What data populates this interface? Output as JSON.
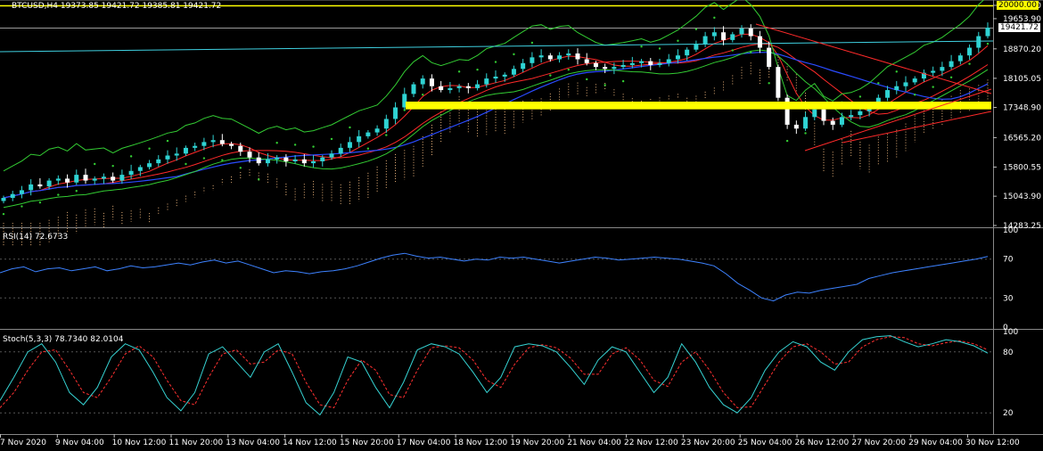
{
  "header": {
    "symbol_line": "BTCUSD,H4  19373.85 19421.72 19385.81 19421.72"
  },
  "price_tags": {
    "level_tag": "20000.00",
    "bid_tag": "19421.72"
  },
  "rsi": {
    "title": "RSI(14) 72.6733"
  },
  "stoch": {
    "title": "Stoch(5,3,3) 78.7340 82.0104"
  },
  "colors": {
    "background": "#000000",
    "bull_candle": "#2fd3d3",
    "bear_candle": "#ffffff",
    "ma_fast": "#ff2a2a",
    "ma_slow": "#2a4bff",
    "band_lime": "#33cc33",
    "kumo": "#e8b27a",
    "highlight": "#ffff00",
    "rsi_line": "#3d82ff",
    "stoch_main": "#36d3d3",
    "stoch_signal": "#ff3030"
  },
  "chart_data": [
    {
      "type": "candlestick",
      "title": "BTCUSD,H4",
      "ylim": [
        14283.25,
        20000.0
      ],
      "y_ticks": [
        "20000.00",
        "19653.90",
        "18870.20",
        "18105.05",
        "17348.90",
        "16565.20",
        "15800.55",
        "15043.90",
        "14283.25"
      ],
      "y_tick_values": [
        20000.0,
        19653.9,
        18870.2,
        18105.05,
        17348.9,
        16565.2,
        15800.55,
        15043.9,
        14283.25
      ],
      "x_ticks": [
        "7 Nov 2020",
        "9 Nov 04:00",
        "10 Nov 12:00",
        "11 Nov 20:00",
        "13 Nov 04:00",
        "14 Nov 12:00",
        "15 Nov 20:00",
        "17 Nov 04:00",
        "18 Nov 12:00",
        "19 Nov 20:00",
        "21 Nov 04:00",
        "22 Nov 12:00",
        "23 Nov 20:00",
        "25 Nov 04:00",
        "26 Nov 12:00",
        "27 Nov 20:00",
        "29 Nov 04:00",
        "30 Nov 12:00"
      ],
      "last": {
        "open": 19373.85,
        "high": 19421.72,
        "low": 19385.81,
        "close": 19421.72
      },
      "highlight_zone": [
        17300,
        17500
      ],
      "close_series": [
        15000,
        15100,
        15200,
        15350,
        15300,
        15450,
        15500,
        15400,
        15600,
        15450,
        15500,
        15550,
        15450,
        15600,
        15700,
        15800,
        15900,
        16000,
        16100,
        16150,
        16300,
        16350,
        16450,
        16500,
        16400,
        16350,
        16200,
        16050,
        15900,
        16000,
        16050,
        15950,
        16000,
        15900,
        15950,
        16050,
        16150,
        16300,
        16450,
        16600,
        16700,
        16800,
        17050,
        17350,
        17700,
        17950,
        18100,
        17900,
        17800,
        17850,
        17900,
        17850,
        17950,
        18100,
        18150,
        18200,
        18350,
        18500,
        18650,
        18700,
        18600,
        18700,
        18750,
        18600,
        18500,
        18400,
        18350,
        18400,
        18450,
        18500,
        18550,
        18450,
        18500,
        18600,
        18700,
        18850,
        19000,
        19200,
        19300,
        19100,
        19250,
        19400,
        19200,
        18900,
        18400,
        17600,
        16900,
        16800,
        17100,
        17300,
        17000,
        16900,
        17100,
        17150,
        17250,
        17400,
        17600,
        17800,
        17900,
        18000,
        18100,
        18250,
        18300,
        18400,
        18550,
        18700,
        18900,
        19200,
        19421.72
      ]
    },
    {
      "type": "line",
      "title": "RSI(14) 72.6733",
      "ylim": [
        0,
        100
      ],
      "y_ticks": [
        "100",
        "70",
        "30",
        "0"
      ],
      "y_tick_values": [
        100,
        70,
        30,
        0
      ],
      "values": [
        56,
        60,
        62,
        57,
        60,
        61,
        58,
        60,
        62,
        58,
        60,
        63,
        61,
        62,
        64,
        66,
        64,
        67,
        69,
        66,
        68,
        64,
        60,
        56,
        58,
        57,
        55,
        57,
        58,
        60,
        63,
        67,
        71,
        74,
        76,
        73,
        71,
        72,
        70,
        68,
        70,
        69,
        72,
        71,
        72,
        70,
        68,
        66,
        68,
        70,
        72,
        71,
        69,
        70,
        71,
        72,
        71,
        70,
        68,
        66,
        63,
        55,
        45,
        38,
        30,
        27,
        33,
        36,
        35,
        38,
        40,
        42,
        44,
        50,
        53,
        56,
        58,
        60,
        62,
        64,
        66,
        68,
        70,
        72.6733
      ]
    },
    {
      "type": "line",
      "title": "Stoch(5,3,3) 78.7340 82.0104",
      "ylim": [
        0,
        100
      ],
      "y_ticks": [
        "100",
        "80",
        "20"
      ],
      "y_tick_values": [
        100,
        80,
        20
      ],
      "series": [
        {
          "name": "main",
          "values": [
            32,
            55,
            80,
            88,
            70,
            40,
            28,
            45,
            75,
            88,
            82,
            60,
            35,
            22,
            40,
            78,
            85,
            70,
            55,
            80,
            88,
            60,
            30,
            18,
            40,
            75,
            70,
            45,
            25,
            50,
            82,
            88,
            85,
            78,
            60,
            40,
            55,
            85,
            88,
            86,
            80,
            65,
            48,
            72,
            85,
            80,
            60,
            40,
            55,
            88,
            70,
            45,
            28,
            20,
            35,
            62,
            80,
            90,
            85,
            70,
            62,
            80,
            92,
            95,
            96,
            90,
            85,
            88,
            92,
            90,
            86,
            78.734
          ]
        },
        {
          "name": "signal",
          "values": [
            25,
            40,
            62,
            80,
            82,
            62,
            40,
            35,
            55,
            78,
            86,
            75,
            52,
            32,
            28,
            55,
            78,
            82,
            68,
            70,
            82,
            78,
            50,
            28,
            25,
            52,
            72,
            62,
            38,
            35,
            62,
            84,
            86,
            84,
            72,
            52,
            45,
            68,
            84,
            87,
            84,
            74,
            58,
            58,
            78,
            84,
            72,
            52,
            46,
            70,
            80,
            62,
            40,
            25,
            26,
            48,
            70,
            85,
            88,
            80,
            68,
            70,
            85,
            92,
            95,
            94,
            88,
            86,
            89,
            91,
            88,
            82.0104
          ]
        }
      ]
    }
  ]
}
